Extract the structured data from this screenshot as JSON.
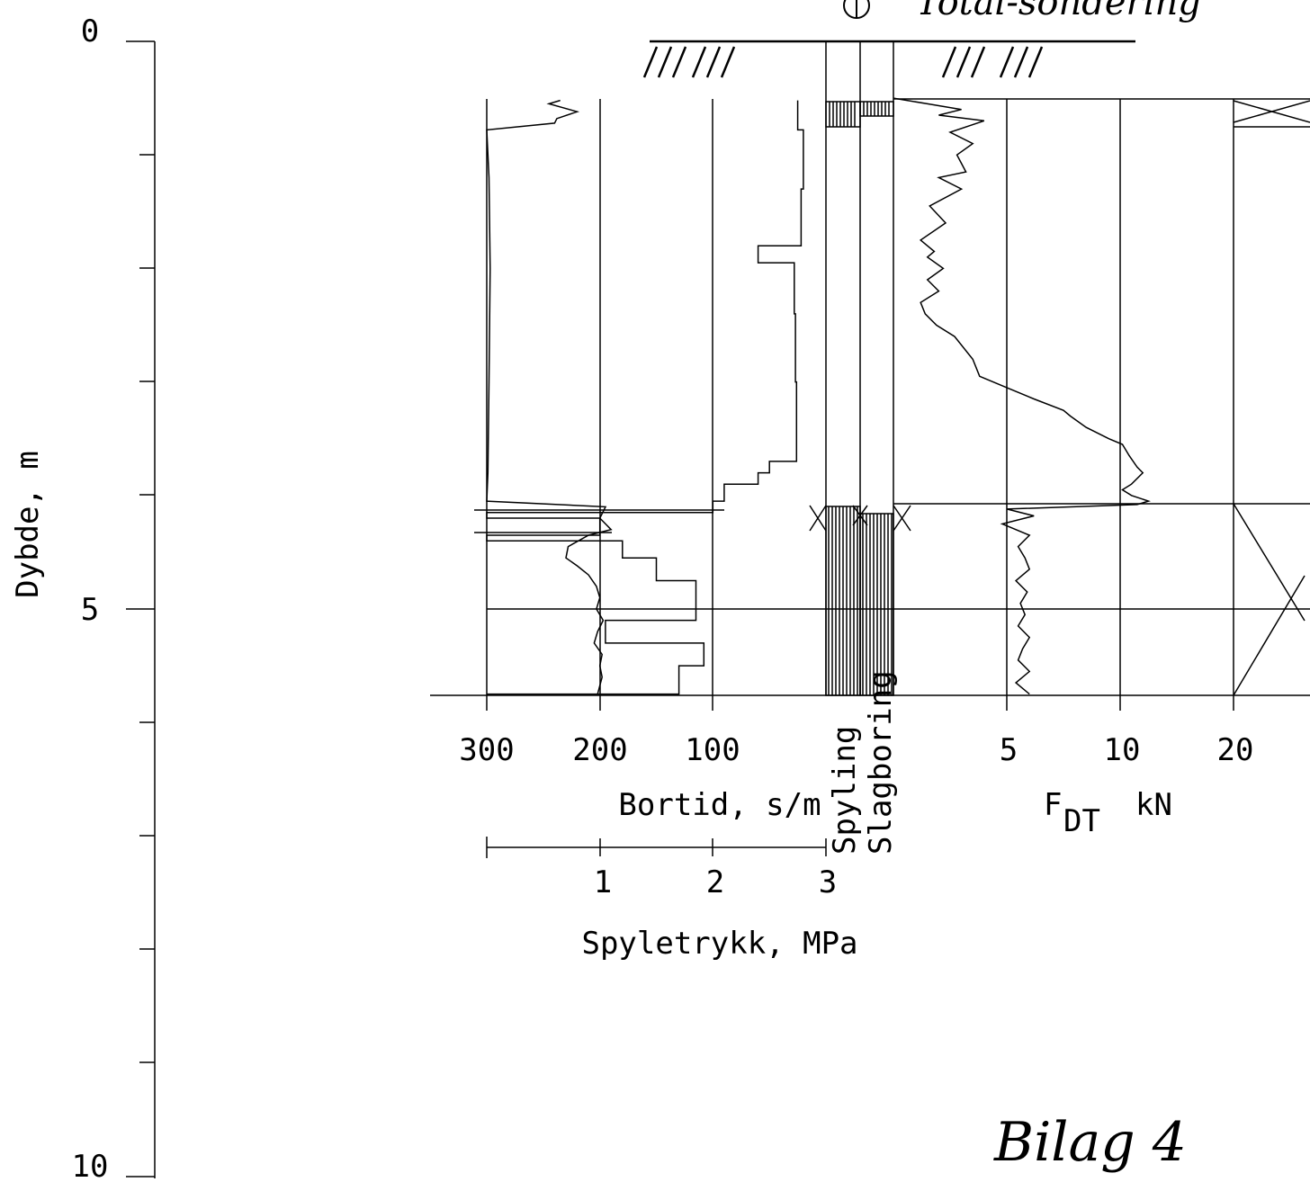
{
  "texts": {
    "y_axis_label": "Dybde, m",
    "bortid_label": "Bortid, s/m",
    "spyletrykk_label": "Spyletrykk, MPa",
    "spyling_label": "Spyling",
    "slagboring_label": "Slagboring",
    "fdt_label_main": "F",
    "fdt_label_sub": "DT",
    "fdt_label_unit": "kN",
    "annotation": "Bilag 4",
    "top_note": "Total-sondering"
  },
  "chart_data": {
    "type": "line",
    "ylabel": "Dybde, m",
    "yaxis": {
      "ticks": [
        "0",
        "5",
        "10"
      ],
      "ylim": [
        0,
        10
      ],
      "inverted": true
    },
    "ground_level_depth_m": 0,
    "test_start_depth_m": 0.5,
    "rock_contact_depth_m": 4.05,
    "stop_depth_m": 5.75,
    "bortid_axis": {
      "label": "Bortid, s/m",
      "ticks": [
        300,
        200,
        100
      ],
      "tick_labels": [
        "300",
        "200",
        "100"
      ],
      "reversed": true
    },
    "spyletrykk_axis": {
      "label": "Spyletrykk, MPa",
      "ticks": [
        1,
        2,
        3
      ],
      "tick_labels": [
        "1",
        "2",
        "3"
      ]
    },
    "fdt_axis": {
      "label": "F DT kN",
      "ticks": [
        5,
        10,
        20
      ],
      "tick_labels": [
        "5",
        "10",
        "20"
      ]
    },
    "series": [
      {
        "name": "Bortid, s/m",
        "kind": "step",
        "points": [
          [
            0.52,
            25
          ],
          [
            0.78,
            25
          ],
          [
            0.78,
            20
          ],
          [
            1.3,
            20
          ],
          [
            1.3,
            22
          ],
          [
            1.8,
            22
          ],
          [
            1.8,
            60
          ],
          [
            1.95,
            60
          ],
          [
            1.95,
            28
          ],
          [
            2.4,
            28
          ],
          [
            2.4,
            27
          ],
          [
            3.0,
            27
          ],
          [
            3.0,
            26
          ],
          [
            3.7,
            26
          ],
          [
            3.7,
            50
          ],
          [
            3.8,
            50
          ],
          [
            3.8,
            60
          ],
          [
            3.9,
            60
          ],
          [
            3.9,
            90
          ],
          [
            4.05,
            90
          ],
          [
            4.05,
            100
          ],
          [
            4.15,
            100
          ],
          [
            4.15,
            300
          ],
          [
            4.2,
            300
          ],
          [
            4.2,
            200
          ],
          [
            4.35,
            200
          ],
          [
            4.35,
            300
          ],
          [
            4.4,
            300
          ],
          [
            4.4,
            180
          ],
          [
            4.55,
            180
          ],
          [
            4.55,
            150
          ],
          [
            4.75,
            150
          ],
          [
            4.75,
            115
          ],
          [
            5.1,
            115
          ],
          [
            5.1,
            195
          ],
          [
            5.3,
            195
          ],
          [
            5.3,
            108
          ],
          [
            5.5,
            108
          ],
          [
            5.5,
            130
          ],
          [
            5.75,
            130
          ],
          [
            5.75,
            300
          ]
        ]
      },
      {
        "name": "Spyletrykk, MPa",
        "kind": "line",
        "points": [
          [
            0.52,
            0.65
          ],
          [
            0.55,
            0.55
          ],
          [
            0.62,
            0.8
          ],
          [
            0.68,
            0.62
          ],
          [
            0.72,
            0.6
          ],
          [
            0.78,
            0.0
          ],
          [
            1.2,
            0.02
          ],
          [
            2.0,
            0.03
          ],
          [
            3.0,
            0.02
          ],
          [
            3.8,
            0.01
          ],
          [
            4.05,
            0.0
          ],
          [
            4.1,
            1.05
          ],
          [
            4.2,
            1.0
          ],
          [
            4.3,
            1.1
          ],
          [
            4.35,
            0.9
          ],
          [
            4.45,
            0.72
          ],
          [
            4.55,
            0.7
          ],
          [
            4.62,
            0.8
          ],
          [
            4.7,
            0.9
          ],
          [
            4.8,
            0.97
          ],
          [
            4.9,
            1.0
          ],
          [
            5.0,
            0.97
          ],
          [
            5.1,
            1.03
          ],
          [
            5.2,
            0.98
          ],
          [
            5.3,
            0.95
          ],
          [
            5.4,
            1.02
          ],
          [
            5.5,
            1.0
          ],
          [
            5.6,
            1.02
          ],
          [
            5.75,
            0.98
          ]
        ]
      },
      {
        "name": "F DT kN",
        "kind": "line",
        "points": [
          [
            0.5,
            0.0
          ],
          [
            0.55,
            1.5
          ],
          [
            0.6,
            3.0
          ],
          [
            0.65,
            2.0
          ],
          [
            0.7,
            4.0
          ],
          [
            0.8,
            2.5
          ],
          [
            0.9,
            3.5
          ],
          [
            1.0,
            2.8
          ],
          [
            1.15,
            3.2
          ],
          [
            1.2,
            2.0
          ],
          [
            1.3,
            3.0
          ],
          [
            1.45,
            1.6
          ],
          [
            1.6,
            2.3
          ],
          [
            1.75,
            1.2
          ],
          [
            1.85,
            1.8
          ],
          [
            1.9,
            1.5
          ],
          [
            2.0,
            2.2
          ],
          [
            2.1,
            1.5
          ],
          [
            2.2,
            2.0
          ],
          [
            2.3,
            1.2
          ],
          [
            2.4,
            1.4
          ],
          [
            2.5,
            1.9
          ],
          [
            2.6,
            2.7
          ],
          [
            2.8,
            3.5
          ],
          [
            2.95,
            3.8
          ],
          [
            3.05,
            5.0
          ],
          [
            3.15,
            6.2
          ],
          [
            3.25,
            7.5
          ],
          [
            3.3,
            7.8
          ],
          [
            3.4,
            8.5
          ],
          [
            3.5,
            9.5
          ],
          [
            3.55,
            10.2
          ],
          [
            3.65,
            10.8
          ],
          [
            3.75,
            11.5
          ],
          [
            3.8,
            12.0
          ],
          [
            3.9,
            11.0
          ],
          [
            3.95,
            10.2
          ],
          [
            4.0,
            11.0
          ],
          [
            4.05,
            12.5
          ],
          [
            4.08,
            11.5
          ],
          [
            4.12,
            5.0
          ],
          [
            4.18,
            6.2
          ],
          [
            4.25,
            4.8
          ],
          [
            4.35,
            6.0
          ],
          [
            4.45,
            5.5
          ],
          [
            4.55,
            5.8
          ],
          [
            4.65,
            6.0
          ],
          [
            4.75,
            5.4
          ],
          [
            4.85,
            5.9
          ],
          [
            4.95,
            5.6
          ],
          [
            5.05,
            5.8
          ],
          [
            5.15,
            5.5
          ],
          [
            5.25,
            6.0
          ],
          [
            5.35,
            5.7
          ],
          [
            5.45,
            5.5
          ],
          [
            5.55,
            6.0
          ],
          [
            5.65,
            5.4
          ],
          [
            5.75,
            6.0
          ]
        ]
      }
    ]
  }
}
